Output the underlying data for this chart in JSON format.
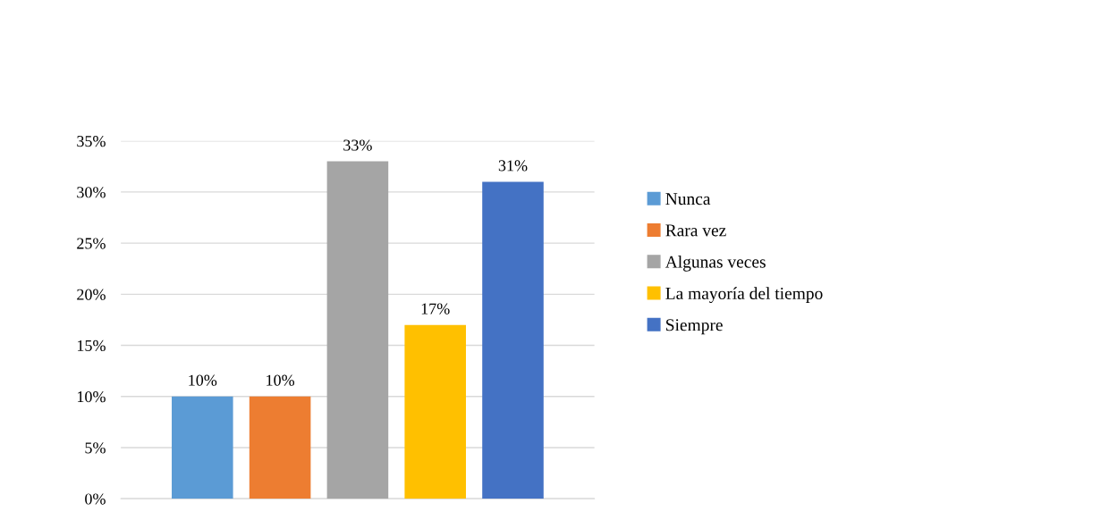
{
  "chart_data": {
    "type": "bar",
    "categories": [
      null
    ],
    "series": [
      {
        "name": "Nunca",
        "color": "#5b9bd5",
        "values": [
          10
        ],
        "value_labels": [
          "10%"
        ]
      },
      {
        "name": "Rara vez",
        "color": "#ed7d31",
        "values": [
          10
        ],
        "value_labels": [
          "10%"
        ]
      },
      {
        "name": "Algunas veces",
        "color": "#a5a5a5",
        "values": [
          33
        ],
        "value_labels": [
          "33%"
        ]
      },
      {
        "name": "La mayoría del tiempo",
        "color": "#ffc000",
        "values": [
          17
        ],
        "value_labels": [
          "17%"
        ]
      },
      {
        "name": "Siempre",
        "color": "#4472c4",
        "values": [
          31
        ],
        "value_labels": [
          "31%"
        ]
      }
    ],
    "ylim": [
      0,
      35
    ],
    "yticks": [
      {
        "value": 0,
        "label": "0%"
      },
      {
        "value": 5,
        "label": "5%"
      },
      {
        "value": 10,
        "label": "10%"
      },
      {
        "value": 15,
        "label": "15%"
      },
      {
        "value": 20,
        "label": "20%"
      },
      {
        "value": 25,
        "label": "25%"
      },
      {
        "value": 30,
        "label": "30%"
      },
      {
        "value": 35,
        "label": "35%"
      }
    ],
    "grid": "y",
    "legend": "right"
  }
}
